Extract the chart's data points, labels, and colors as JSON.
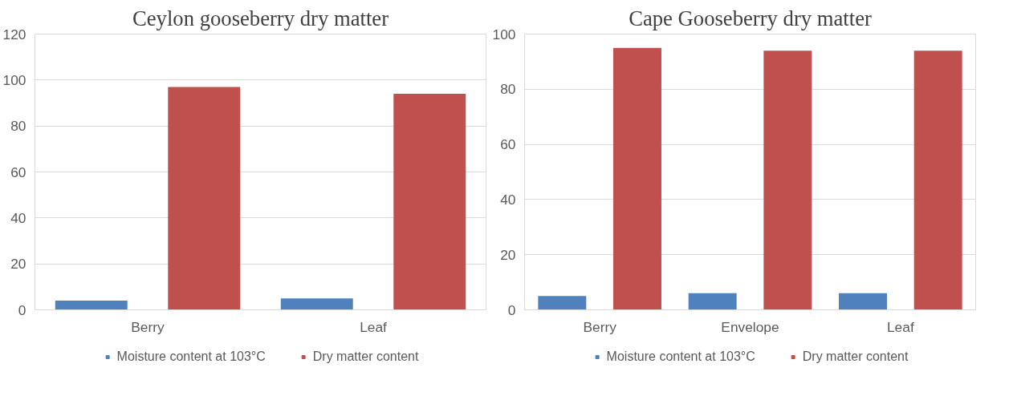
{
  "chart_data": [
    {
      "type": "bar",
      "title": "Ceylon gooseberry dry matter",
      "categories": [
        "Berry",
        "Leaf"
      ],
      "series": [
        {
          "name": "Moisture content at 103°C",
          "color": "#4f81bd",
          "values": [
            4,
            5
          ]
        },
        {
          "name": "Dry matter content",
          "color": "#c0504d",
          "values": [
            97,
            94
          ]
        }
      ],
      "ylim": [
        0,
        120
      ],
      "yticks": [
        0,
        20,
        40,
        60,
        80,
        100,
        120
      ],
      "grid": "y",
      "legend": "bottom"
    },
    {
      "type": "bar",
      "title": "Cape Gooseberry dry matter",
      "categories": [
        "Berry",
        "Envelope",
        "Leaf"
      ],
      "series": [
        {
          "name": "Moisture content at 103°C",
          "color": "#4f81bd",
          "values": [
            5,
            6,
            6
          ]
        },
        {
          "name": "Dry matter content",
          "color": "#c0504d",
          "values": [
            95,
            94,
            94
          ]
        }
      ],
      "ylim": [
        0,
        100
      ],
      "yticks": [
        0,
        20,
        40,
        60,
        80,
        100
      ],
      "grid": "y",
      "legend": "bottom"
    }
  ]
}
